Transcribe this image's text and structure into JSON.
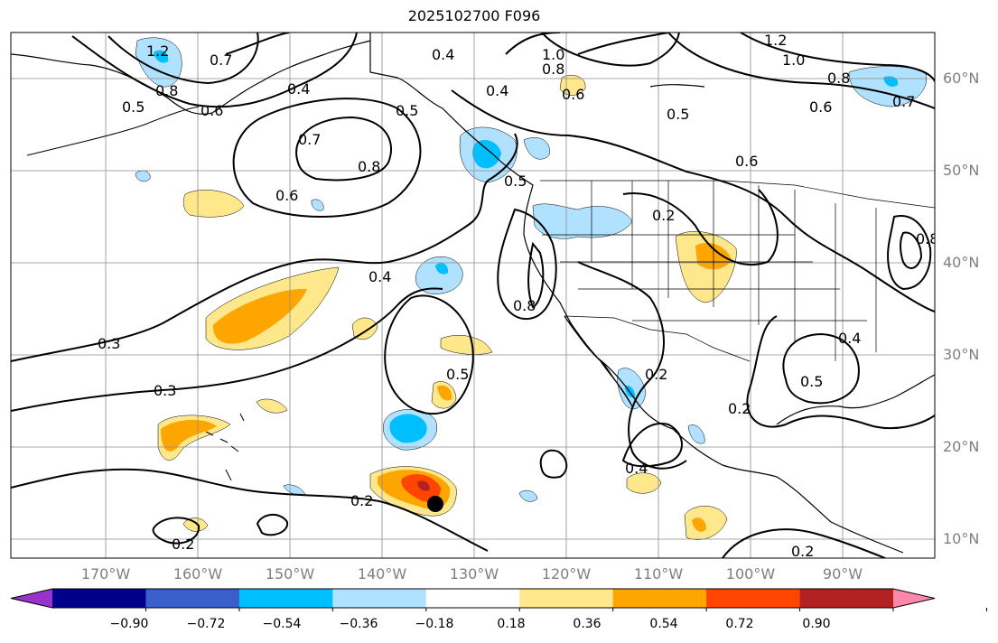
{
  "title": "2025102700 F096",
  "latitude_labels": [
    "60°N",
    "50°N",
    "40°N",
    "30°N",
    "20°N",
    "10°N"
  ],
  "longitude_labels": [
    "170°W",
    "160°W",
    "150°W",
    "140°W",
    "130°W",
    "120°W",
    "110°W",
    "100°W",
    "90°W"
  ],
  "colorbar": {
    "ticks": [
      "−0.90",
      "−0.72",
      "−0.54",
      "−0.36",
      "−0.18",
      "0.18",
      "0.36",
      "0.54",
      "0.72",
      "0.90"
    ],
    "colors": [
      "#9932cc",
      "#00008b",
      "#3a5fcd",
      "#00bfff",
      "#b0e2ff",
      "#ffffff",
      "#ffe78c",
      "#ffa500",
      "#ff4500",
      "#b22222",
      "#ff88aa"
    ],
    "extend": "both"
  },
  "contour_labels": [
    "1.2",
    "0.8",
    "0.7",
    "0.6",
    "0.5",
    "0.4",
    "0.5",
    "0.4",
    "0.7",
    "0.8",
    "0.6",
    "0.4",
    "0.3",
    "0.3",
    "0.2",
    "0.2",
    "1.0",
    "0.8",
    "0.6",
    "0.5",
    "0.4",
    "1.2",
    "1.0",
    "0.8",
    "0.7",
    "0.6",
    "0.5",
    "0.6",
    "0.2",
    "0.5",
    "0.8",
    "0.2",
    "0.2",
    "0.4",
    "0.4",
    "0.5",
    "0.2",
    "0.8"
  ],
  "marker": {
    "type": "filled-circle",
    "color": "#000000"
  }
}
